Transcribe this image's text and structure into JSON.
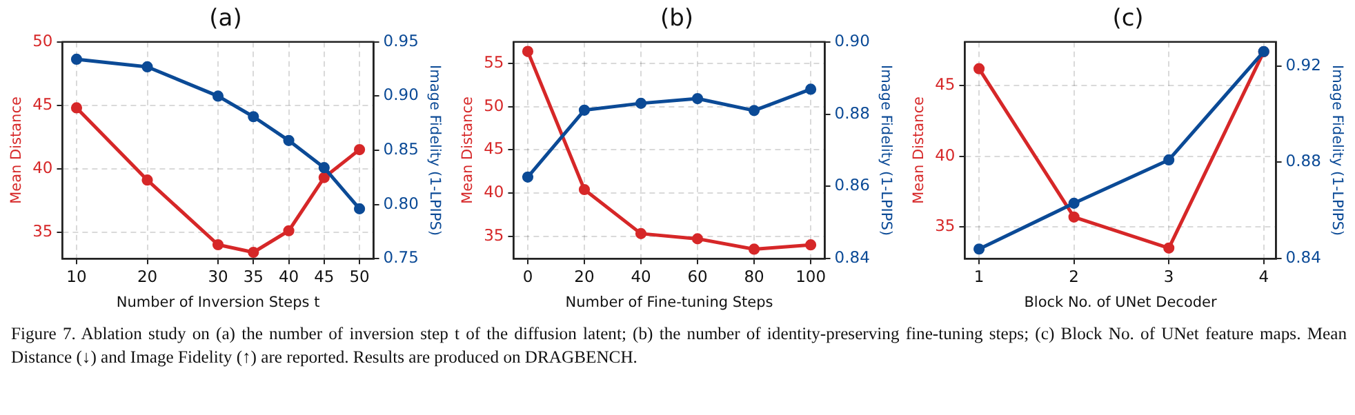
{
  "chart_data": [
    {
      "type": "line",
      "title": "(a)",
      "xlabel": "Number of Inversion Steps t",
      "ylabel": "Mean Distance",
      "y2label": "Image Fidelity (1-LPIPS)",
      "x": [
        10,
        20,
        30,
        35,
        40,
        45,
        50
      ],
      "series": [
        {
          "color": "#d62728",
          "axis": "y",
          "values": [
            44.8,
            39.1,
            34.0,
            33.4,
            35.1,
            39.3,
            41.5
          ]
        },
        {
          "color": "#0b4a96",
          "axis": "y2",
          "values": [
            0.934,
            0.927,
            0.9,
            0.881,
            0.859,
            0.834,
            0.796
          ]
        }
      ],
      "xlim": [
        8,
        52
      ],
      "xticks": [
        10,
        20,
        30,
        35,
        40,
        45,
        50
      ],
      "ylim": [
        32.9,
        50
      ],
      "yticks": [
        35,
        40,
        45,
        50
      ],
      "y2lim": [
        0.75,
        0.95
      ],
      "y2ticks": [
        {
          "value": 0.75,
          "label": "0.75"
        },
        {
          "value": 0.8,
          "label": "0.80"
        },
        {
          "value": 0.85,
          "label": "0.85"
        },
        {
          "value": 0.9,
          "label": "0.90"
        },
        {
          "value": 0.95,
          "label": "0.95"
        }
      ],
      "grid": true,
      "marker": "circle",
      "line_style": "solid",
      "annotations": [
        "Figure 7. Ablation study on (a) the number of inversion step t of the diffusion latent; (b) the number of identity-preserving fine-tuning steps; (c) Block No. of UNet feature maps. Mean Distance (↓) and Image Fidelity (↑) are reported. Results are produced on DRAGBENCH."
      ]
    },
    {
      "type": "line",
      "title": "(b)",
      "xlabel": "Number of Fine-tuning Steps",
      "ylabel": "Mean Distance",
      "y2label": "Image Fidelity (1-LPIPS)",
      "x": [
        0,
        20,
        40,
        60,
        80,
        100
      ],
      "series": [
        {
          "color": "#d62728",
          "axis": "y",
          "values": [
            56.4,
            40.4,
            35.3,
            34.7,
            33.5,
            34.0
          ]
        },
        {
          "color": "#0b4a96",
          "axis": "y2",
          "values": [
            0.8626,
            0.8811,
            0.883,
            0.8843,
            0.881,
            0.8869
          ]
        }
      ],
      "xlim": [
        -5,
        105
      ],
      "xticks": [
        0,
        20,
        40,
        60,
        80,
        100
      ],
      "ylim": [
        32.4,
        57.5
      ],
      "yticks": [
        35,
        40,
        45,
        50,
        55
      ],
      "y2lim": [
        0.84,
        0.9
      ],
      "y2ticks": [
        {
          "value": 0.84,
          "label": "0.84"
        },
        {
          "value": 0.86,
          "label": "0.86"
        },
        {
          "value": 0.88,
          "label": "0.88"
        },
        {
          "value": 0.9,
          "label": "0.90"
        }
      ],
      "grid": true,
      "marker": "circle",
      "line_style": "solid"
    },
    {
      "type": "line",
      "title": "(c)",
      "xlabel": "Block No. of UNet Decoder",
      "ylabel": "Mean Distance",
      "y2label": "Image Fidelity (1-LPIPS)",
      "x": [
        1,
        2,
        3,
        4
      ],
      "series": [
        {
          "color": "#d62728",
          "axis": "y",
          "values": [
            46.2,
            35.7,
            33.5,
            47.4
          ]
        },
        {
          "color": "#0b4a96",
          "axis": "y2",
          "values": [
            0.844,
            0.863,
            0.881,
            0.926
          ]
        }
      ],
      "xlim": [
        0.85,
        4.13
      ],
      "xticks": [
        1,
        2,
        3,
        4
      ],
      "ylim": [
        32.75,
        48.1
      ],
      "yticks": [
        35,
        40,
        45
      ],
      "y2lim": [
        0.84,
        0.93
      ],
      "y2ticks": [
        {
          "value": 0.84,
          "label": "0.84"
        },
        {
          "value": 0.88,
          "label": "0.88"
        },
        {
          "value": 0.92,
          "label": "0.92"
        }
      ],
      "grid": true,
      "marker": "circle",
      "line_style": "solid"
    }
  ]
}
